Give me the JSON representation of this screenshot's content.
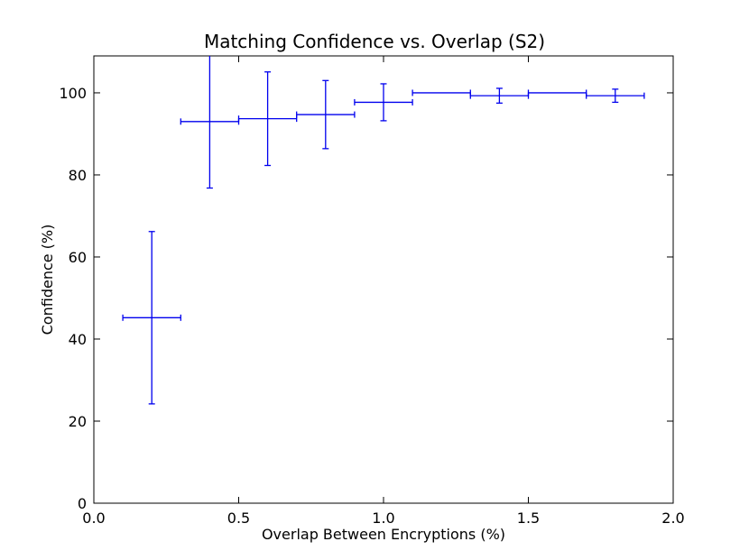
{
  "chart_data": {
    "type": "errorbar",
    "title": "Matching Confidence vs. Overlap (S2)",
    "xlabel": "Overlap Between Encryptions (%)",
    "ylabel": "Confidence (%)",
    "xlim": [
      0.0,
      2.0
    ],
    "ylim": [
      0,
      109
    ],
    "xticks": [
      0.0,
      0.5,
      1.0,
      1.5,
      2.0
    ],
    "xtick_labels": [
      "0.0",
      "0.5",
      "1.0",
      "1.5",
      "2.0"
    ],
    "yticks": [
      0,
      20,
      40,
      60,
      80,
      100
    ],
    "ytick_labels": [
      "0",
      "20",
      "40",
      "60",
      "80",
      "100"
    ],
    "grid": false,
    "series_color": "#0000ee",
    "points": [
      {
        "x": 0.2,
        "y": 45.2,
        "xerr": 0.1,
        "yerr_low": 21.0,
        "yerr_high": 21.0
      },
      {
        "x": 0.4,
        "y": 93.0,
        "xerr": 0.1,
        "yerr_low": 16.2,
        "yerr_high": 16.2
      },
      {
        "x": 0.6,
        "y": 93.7,
        "xerr": 0.1,
        "yerr_low": 11.4,
        "yerr_high": 11.4
      },
      {
        "x": 0.8,
        "y": 94.7,
        "xerr": 0.1,
        "yerr_low": 8.3,
        "yerr_high": 8.3
      },
      {
        "x": 1.0,
        "y": 97.7,
        "xerr": 0.1,
        "yerr_low": 4.5,
        "yerr_high": 4.5
      },
      {
        "x": 1.2,
        "y": 100.0,
        "xerr": 0.1,
        "yerr_low": 0.0,
        "yerr_high": 0.0
      },
      {
        "x": 1.4,
        "y": 99.3,
        "xerr": 0.1,
        "yerr_low": 1.8,
        "yerr_high": 1.8
      },
      {
        "x": 1.6,
        "y": 100.0,
        "xerr": 0.1,
        "yerr_low": 0.0,
        "yerr_high": 0.0
      },
      {
        "x": 1.8,
        "y": 99.3,
        "xerr": 0.1,
        "yerr_low": 1.6,
        "yerr_high": 1.6
      }
    ]
  }
}
